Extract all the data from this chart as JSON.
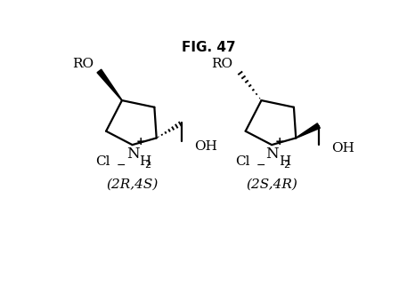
{
  "title": "FIG. 47",
  "title_fontsize": 11,
  "title_fontweight": "bold",
  "background_color": "#ffffff",
  "label_left": "(2R,4S)",
  "label_right": "(2S,4R)",
  "figsize": [
    4.57,
    3.39
  ],
  "dpi": 100
}
